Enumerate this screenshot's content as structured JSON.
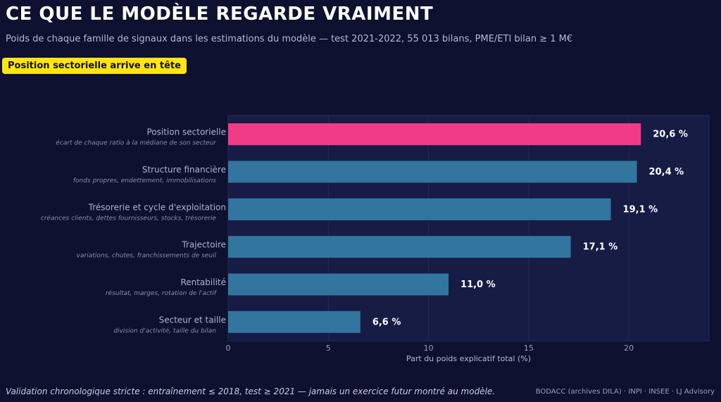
{
  "header": {
    "title": "CE QUE LE MODÈLE REGARDE VRAIMENT",
    "subtitle": "Poids de chaque famille de signaux dans les estimations du modèle — test 2021-2022, 55 013 bilans, PME/ETI bilan ≥ 1 M€",
    "badge": "Position sectorielle arrive en tête"
  },
  "footer": {
    "note": "Validation chronologique stricte : entraînement ≤ 2018, test ≥ 2021 — jamais un exercice futur montré au modèle.",
    "source": "BODACC (archives DILA) · INPI · INSEE  ·  LJ Advisory"
  },
  "colors": {
    "background": "#0e1130",
    "plot_background": "#171c45",
    "highlight_bar": "#f23b87",
    "bar": "#32759e",
    "badge": "#ffe415"
  },
  "chart_data": {
    "type": "bar",
    "orientation": "horizontal",
    "categories": [
      "Position sectorielle",
      "Structure financière",
      "Trésorerie et cycle d'exploitation",
      "Trajectoire",
      "Rentabilité",
      "Secteur et taille"
    ],
    "category_descriptions": [
      "écart de chaque ratio à la médiane de son secteur",
      "fonds propres, endettement, immobilisations",
      "créances clients, dettes fournisseurs, stocks, trésorerie",
      "variations, chutes, franchissements de seuil",
      "résultat, marges, rotation de l'actif",
      "division d'activité, taille du bilan"
    ],
    "values": [
      20.6,
      20.4,
      19.1,
      17.1,
      11.0,
      6.6
    ],
    "value_labels": [
      "20,6 %",
      "20,4 %",
      "19,1 %",
      "17,1 %",
      "11,0 %",
      "6,6 %"
    ],
    "highlighted_index": 0,
    "xlabel": "Part du poids explicatif total (%)",
    "xlim": [
      0,
      24
    ],
    "xticks": [
      0,
      5,
      10,
      15,
      20
    ],
    "grid": true
  }
}
